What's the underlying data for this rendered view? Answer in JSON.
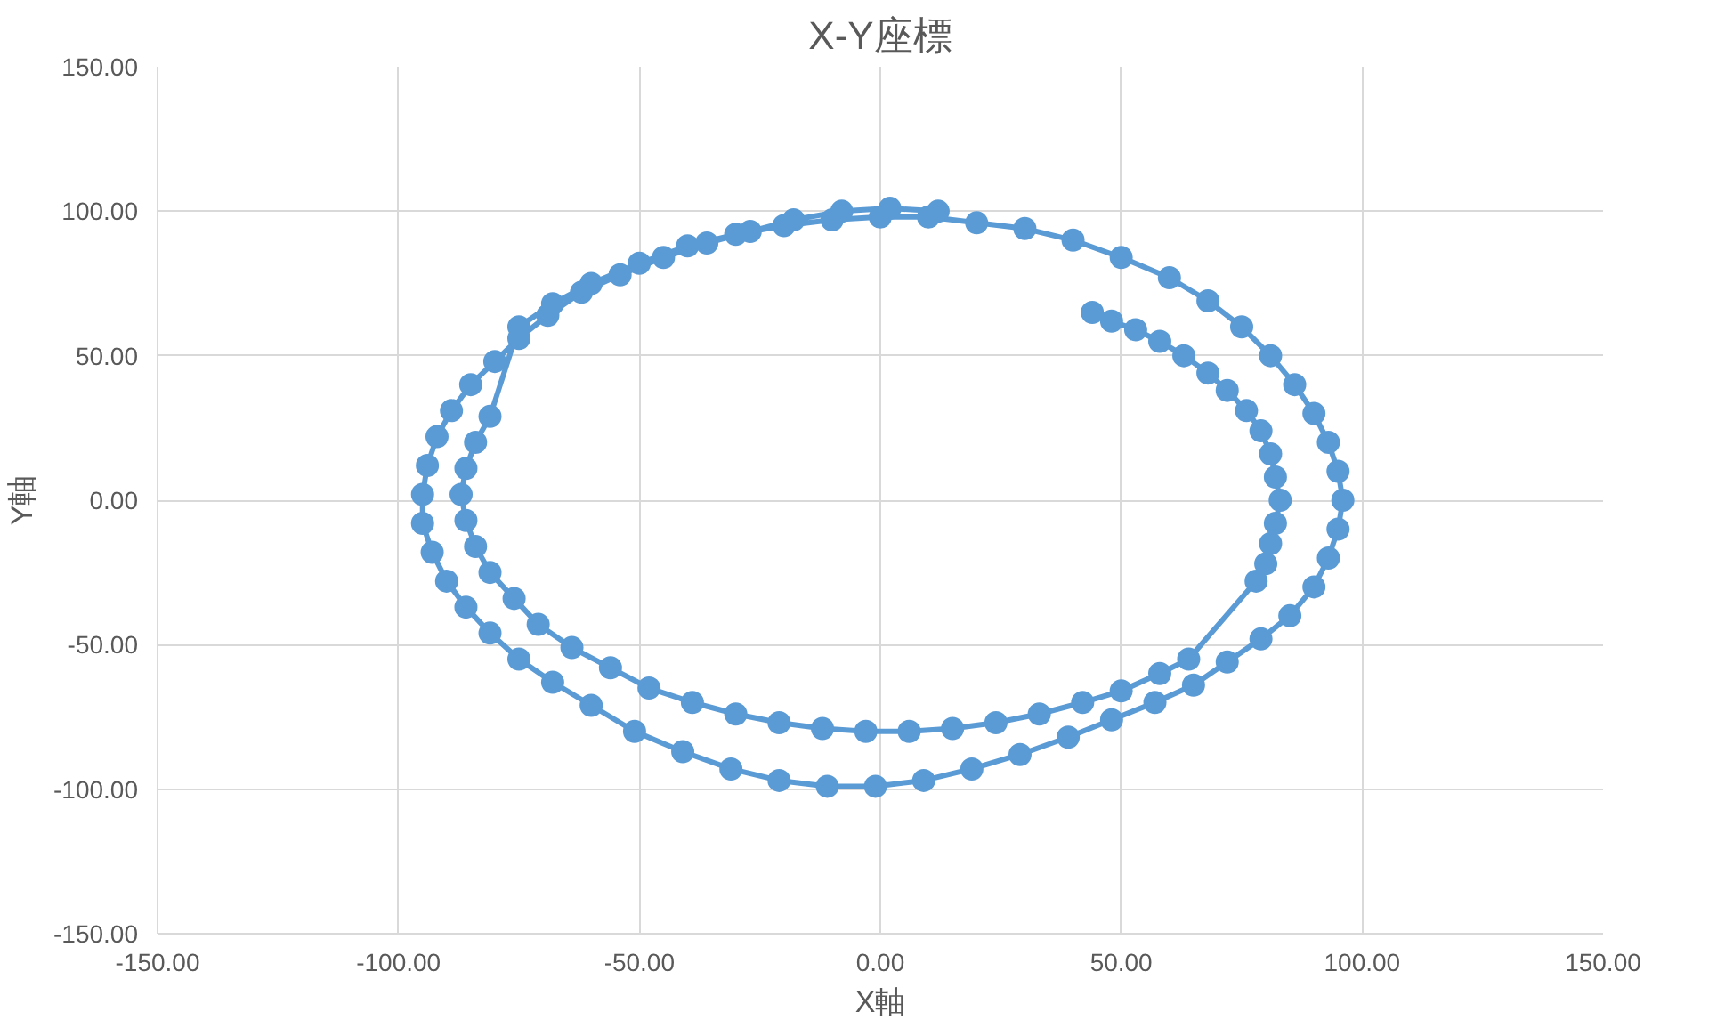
{
  "chart_data": {
    "type": "line",
    "title": "X-Y座標",
    "xlabel": "X軸",
    "ylabel": "Y軸",
    "xlim": [
      -150,
      150
    ],
    "ylim": [
      -150,
      150
    ],
    "xticks": [
      {
        "value": -150,
        "label": "-150.00"
      },
      {
        "value": -100,
        "label": "-100.00"
      },
      {
        "value": -50,
        "label": "-50.00"
      },
      {
        "value": 0,
        "label": "0.00"
      },
      {
        "value": 50,
        "label": "50.00"
      },
      {
        "value": 100,
        "label": "100.00"
      },
      {
        "value": 150,
        "label": "150.00"
      }
    ],
    "yticks": [
      {
        "value": -150,
        "label": "-150.00"
      },
      {
        "value": -100,
        "label": "-100.00"
      },
      {
        "value": -50,
        "label": "-50.00"
      },
      {
        "value": 0,
        "label": "0.00"
      },
      {
        "value": 50,
        "label": "50.00"
      },
      {
        "value": 100,
        "label": "100.00"
      },
      {
        "value": 150,
        "label": "150.00"
      }
    ],
    "grid": true,
    "marker": "circle",
    "line_style": "solid",
    "series": [
      {
        "color": "#5b9bd5",
        "x": [
          44,
          48,
          53,
          58,
          63,
          68,
          72,
          76,
          79,
          81,
          82,
          83,
          82,
          81,
          80,
          78,
          64,
          58,
          50,
          42,
          33,
          24,
          15,
          6,
          -3,
          -12,
          -21,
          -30,
          -39,
          -48,
          -56,
          -64,
          -71,
          -76,
          -81,
          -84,
          -86,
          -87,
          -86,
          -84,
          -81,
          -75,
          -68,
          -60,
          -50,
          -40,
          -30,
          -20,
          -10,
          0,
          10,
          20,
          30,
          40,
          50,
          60,
          68,
          75,
          81,
          86,
          90,
          93,
          95,
          96,
          95,
          93,
          90,
          85,
          79,
          72,
          65,
          57,
          48,
          39,
          29,
          19,
          9,
          -1,
          -11,
          -21,
          -31,
          -41,
          -51,
          -60,
          -68,
          -75,
          -81,
          -86,
          -90,
          -93,
          -95,
          -95,
          -94,
          -92,
          -89,
          -85,
          -80,
          -75,
          -69,
          -62,
          -54,
          -45,
          -36,
          -27,
          -18,
          -8,
          2,
          12
        ],
        "values": [
          65,
          62,
          59,
          55,
          50,
          44,
          38,
          31,
          24,
          16,
          8,
          0,
          -8,
          -15,
          -22,
          -28,
          -55,
          -60,
          -66,
          -70,
          -74,
          -77,
          -79,
          -80,
          -80,
          -79,
          -77,
          -74,
          -70,
          -65,
          -58,
          -51,
          -43,
          -34,
          -25,
          -16,
          -7,
          2,
          11,
          20,
          29,
          60,
          68,
          75,
          82,
          88,
          92,
          95,
          97,
          98,
          98,
          96,
          94,
          90,
          84,
          77,
          69,
          60,
          50,
          40,
          30,
          20,
          10,
          0,
          -10,
          -20,
          -30,
          -40,
          -48,
          -56,
          -64,
          -70,
          -76,
          -82,
          -88,
          -93,
          -97,
          -99,
          -99,
          -97,
          -93,
          -87,
          -80,
          -71,
          -63,
          -55,
          -46,
          -37,
          -28,
          -18,
          -8,
          2,
          12,
          22,
          31,
          40,
          48,
          56,
          64,
          72,
          78,
          84,
          89,
          93,
          97,
          100,
          101,
          100
        ]
      }
    ]
  }
}
